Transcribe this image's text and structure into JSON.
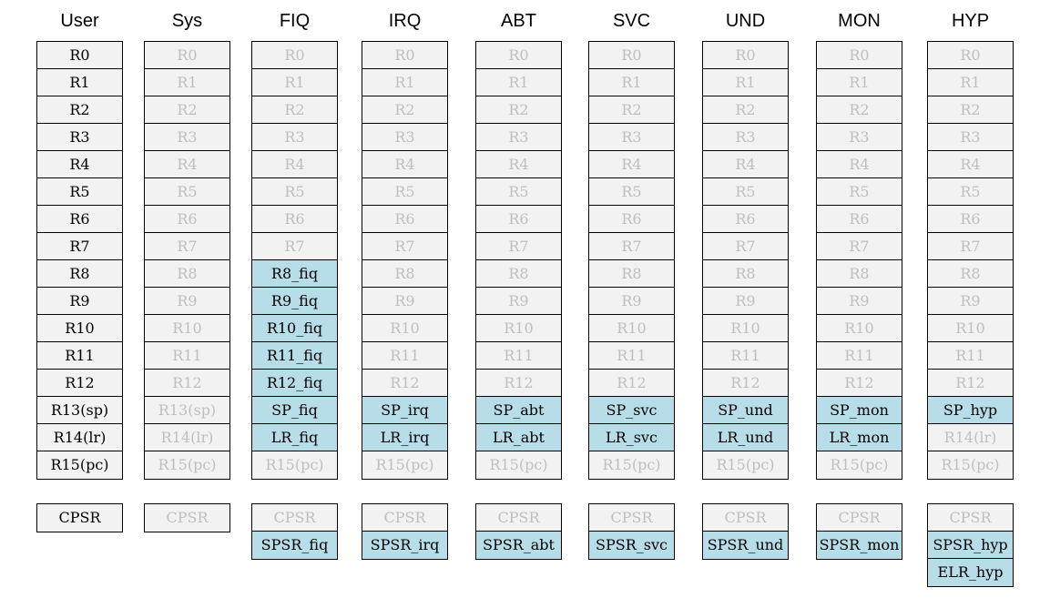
{
  "diagram": {
    "modes": [
      {
        "name": "User",
        "registers": [
          {
            "label": "R0",
            "style": "own"
          },
          {
            "label": "R1",
            "style": "own"
          },
          {
            "label": "R2",
            "style": "own"
          },
          {
            "label": "R3",
            "style": "own"
          },
          {
            "label": "R4",
            "style": "own"
          },
          {
            "label": "R5",
            "style": "own"
          },
          {
            "label": "R6",
            "style": "own"
          },
          {
            "label": "R7",
            "style": "own"
          },
          {
            "label": "R8",
            "style": "own"
          },
          {
            "label": "R9",
            "style": "own"
          },
          {
            "label": "R10",
            "style": "own"
          },
          {
            "label": "R11",
            "style": "own"
          },
          {
            "label": "R12",
            "style": "own"
          },
          {
            "label": "R13(sp)",
            "style": "own"
          },
          {
            "label": "R14(lr)",
            "style": "own"
          },
          {
            "label": "R15(pc)",
            "style": "own"
          }
        ],
        "status": [
          {
            "label": "CPSR",
            "style": "own"
          }
        ]
      },
      {
        "name": "Sys",
        "registers": [
          {
            "label": "R0",
            "style": "shared"
          },
          {
            "label": "R1",
            "style": "shared"
          },
          {
            "label": "R2",
            "style": "shared"
          },
          {
            "label": "R3",
            "style": "shared"
          },
          {
            "label": "R4",
            "style": "shared"
          },
          {
            "label": "R5",
            "style": "shared"
          },
          {
            "label": "R6",
            "style": "shared"
          },
          {
            "label": "R7",
            "style": "shared"
          },
          {
            "label": "R8",
            "style": "shared"
          },
          {
            "label": "R9",
            "style": "shared"
          },
          {
            "label": "R10",
            "style": "shared"
          },
          {
            "label": "R11",
            "style": "shared"
          },
          {
            "label": "R12",
            "style": "shared"
          },
          {
            "label": "R13(sp)",
            "style": "shared"
          },
          {
            "label": "R14(lr)",
            "style": "shared"
          },
          {
            "label": "R15(pc)",
            "style": "shared"
          }
        ],
        "status": [
          {
            "label": "CPSR",
            "style": "shared"
          }
        ]
      },
      {
        "name": "FIQ",
        "registers": [
          {
            "label": "R0",
            "style": "shared"
          },
          {
            "label": "R1",
            "style": "shared"
          },
          {
            "label": "R2",
            "style": "shared"
          },
          {
            "label": "R3",
            "style": "shared"
          },
          {
            "label": "R4",
            "style": "shared"
          },
          {
            "label": "R5",
            "style": "shared"
          },
          {
            "label": "R6",
            "style": "shared"
          },
          {
            "label": "R7",
            "style": "shared"
          },
          {
            "label": "R8_fiq",
            "style": "banked"
          },
          {
            "label": "R9_fiq",
            "style": "banked"
          },
          {
            "label": "R10_fiq",
            "style": "banked"
          },
          {
            "label": "R11_fiq",
            "style": "banked"
          },
          {
            "label": "R12_fiq",
            "style": "banked"
          },
          {
            "label": "SP_fiq",
            "style": "banked"
          },
          {
            "label": "LR_fiq",
            "style": "banked"
          },
          {
            "label": "R15(pc)",
            "style": "shared"
          }
        ],
        "status": [
          {
            "label": "CPSR",
            "style": "shared"
          },
          {
            "label": "SPSR_fiq",
            "style": "banked"
          }
        ]
      },
      {
        "name": "IRQ",
        "registers": [
          {
            "label": "R0",
            "style": "shared"
          },
          {
            "label": "R1",
            "style": "shared"
          },
          {
            "label": "R2",
            "style": "shared"
          },
          {
            "label": "R3",
            "style": "shared"
          },
          {
            "label": "R4",
            "style": "shared"
          },
          {
            "label": "R5",
            "style": "shared"
          },
          {
            "label": "R6",
            "style": "shared"
          },
          {
            "label": "R7",
            "style": "shared"
          },
          {
            "label": "R8",
            "style": "shared"
          },
          {
            "label": "R9",
            "style": "shared"
          },
          {
            "label": "R10",
            "style": "shared"
          },
          {
            "label": "R11",
            "style": "shared"
          },
          {
            "label": "R12",
            "style": "shared"
          },
          {
            "label": "SP_irq",
            "style": "banked"
          },
          {
            "label": "LR_irq",
            "style": "banked"
          },
          {
            "label": "R15(pc)",
            "style": "shared"
          }
        ],
        "status": [
          {
            "label": "CPSR",
            "style": "shared"
          },
          {
            "label": "SPSR_irq",
            "style": "banked"
          }
        ]
      },
      {
        "name": "ABT",
        "registers": [
          {
            "label": "R0",
            "style": "shared"
          },
          {
            "label": "R1",
            "style": "shared"
          },
          {
            "label": "R2",
            "style": "shared"
          },
          {
            "label": "R3",
            "style": "shared"
          },
          {
            "label": "R4",
            "style": "shared"
          },
          {
            "label": "R5",
            "style": "shared"
          },
          {
            "label": "R6",
            "style": "shared"
          },
          {
            "label": "R7",
            "style": "shared"
          },
          {
            "label": "R8",
            "style": "shared"
          },
          {
            "label": "R9",
            "style": "shared"
          },
          {
            "label": "R10",
            "style": "shared"
          },
          {
            "label": "R11",
            "style": "shared"
          },
          {
            "label": "R12",
            "style": "shared"
          },
          {
            "label": "SP_abt",
            "style": "banked"
          },
          {
            "label": "LR_abt",
            "style": "banked"
          },
          {
            "label": "R15(pc)",
            "style": "shared"
          }
        ],
        "status": [
          {
            "label": "CPSR",
            "style": "shared"
          },
          {
            "label": "SPSR_abt",
            "style": "banked"
          }
        ]
      },
      {
        "name": "SVC",
        "registers": [
          {
            "label": "R0",
            "style": "shared"
          },
          {
            "label": "R1",
            "style": "shared"
          },
          {
            "label": "R2",
            "style": "shared"
          },
          {
            "label": "R3",
            "style": "shared"
          },
          {
            "label": "R4",
            "style": "shared"
          },
          {
            "label": "R5",
            "style": "shared"
          },
          {
            "label": "R6",
            "style": "shared"
          },
          {
            "label": "R7",
            "style": "shared"
          },
          {
            "label": "R8",
            "style": "shared"
          },
          {
            "label": "R9",
            "style": "shared"
          },
          {
            "label": "R10",
            "style": "shared"
          },
          {
            "label": "R11",
            "style": "shared"
          },
          {
            "label": "R12",
            "style": "shared"
          },
          {
            "label": "SP_svc",
            "style": "banked"
          },
          {
            "label": "LR_svc",
            "style": "banked"
          },
          {
            "label": "R15(pc)",
            "style": "shared"
          }
        ],
        "status": [
          {
            "label": "CPSR",
            "style": "shared"
          },
          {
            "label": "SPSR_svc",
            "style": "banked"
          }
        ]
      },
      {
        "name": "UND",
        "registers": [
          {
            "label": "R0",
            "style": "shared"
          },
          {
            "label": "R1",
            "style": "shared"
          },
          {
            "label": "R2",
            "style": "shared"
          },
          {
            "label": "R3",
            "style": "shared"
          },
          {
            "label": "R4",
            "style": "shared"
          },
          {
            "label": "R5",
            "style": "shared"
          },
          {
            "label": "R6",
            "style": "shared"
          },
          {
            "label": "R7",
            "style": "shared"
          },
          {
            "label": "R8",
            "style": "shared"
          },
          {
            "label": "R9",
            "style": "shared"
          },
          {
            "label": "R10",
            "style": "shared"
          },
          {
            "label": "R11",
            "style": "shared"
          },
          {
            "label": "R12",
            "style": "shared"
          },
          {
            "label": "SP_und",
            "style": "banked"
          },
          {
            "label": "LR_und",
            "style": "banked"
          },
          {
            "label": "R15(pc)",
            "style": "shared"
          }
        ],
        "status": [
          {
            "label": "CPSR",
            "style": "shared"
          },
          {
            "label": "SPSR_und",
            "style": "banked"
          }
        ]
      },
      {
        "name": "MON",
        "registers": [
          {
            "label": "R0",
            "style": "shared"
          },
          {
            "label": "R1",
            "style": "shared"
          },
          {
            "label": "R2",
            "style": "shared"
          },
          {
            "label": "R3",
            "style": "shared"
          },
          {
            "label": "R4",
            "style": "shared"
          },
          {
            "label": "R5",
            "style": "shared"
          },
          {
            "label": "R6",
            "style": "shared"
          },
          {
            "label": "R7",
            "style": "shared"
          },
          {
            "label": "R8",
            "style": "shared"
          },
          {
            "label": "R9",
            "style": "shared"
          },
          {
            "label": "R10",
            "style": "shared"
          },
          {
            "label": "R11",
            "style": "shared"
          },
          {
            "label": "R12",
            "style": "shared"
          },
          {
            "label": "SP_mon",
            "style": "banked"
          },
          {
            "label": "LR_mon",
            "style": "banked"
          },
          {
            "label": "R15(pc)",
            "style": "shared"
          }
        ],
        "status": [
          {
            "label": "CPSR",
            "style": "shared"
          },
          {
            "label": "SPSR_mon",
            "style": "banked"
          }
        ]
      },
      {
        "name": "HYP",
        "registers": [
          {
            "label": "R0",
            "style": "shared"
          },
          {
            "label": "R1",
            "style": "shared"
          },
          {
            "label": "R2",
            "style": "shared"
          },
          {
            "label": "R3",
            "style": "shared"
          },
          {
            "label": "R4",
            "style": "shared"
          },
          {
            "label": "R5",
            "style": "shared"
          },
          {
            "label": "R6",
            "style": "shared"
          },
          {
            "label": "R7",
            "style": "shared"
          },
          {
            "label": "R8",
            "style": "shared"
          },
          {
            "label": "R9",
            "style": "shared"
          },
          {
            "label": "R10",
            "style": "shared"
          },
          {
            "label": "R11",
            "style": "shared"
          },
          {
            "label": "R12",
            "style": "shared"
          },
          {
            "label": "SP_hyp",
            "style": "banked"
          },
          {
            "label": "R14(lr)",
            "style": "shared"
          },
          {
            "label": "R15(pc)",
            "style": "shared"
          }
        ],
        "status": [
          {
            "label": "CPSR",
            "style": "shared"
          },
          {
            "label": "SPSR_hyp",
            "style": "banked"
          },
          {
            "label": "ELR_hyp",
            "style": "banked"
          }
        ]
      }
    ],
    "colors": {
      "banked_fill": "#b7dde8",
      "shared_fill": "#f2f2f2",
      "shared_text": "#bfbfbf",
      "own_text": "#000000",
      "border": "#000000"
    }
  }
}
